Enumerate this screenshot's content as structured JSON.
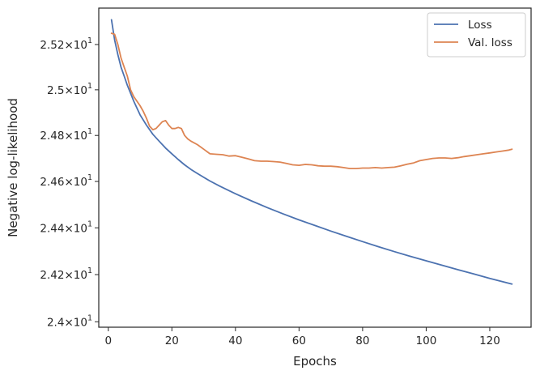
{
  "chart_data": {
    "type": "line",
    "title": "",
    "xlabel": "Epochs",
    "ylabel": "Negative log-likelihood",
    "xlim": [
      -3,
      133
    ],
    "ylim": [
      23.977,
      25.362
    ],
    "yscale": "log",
    "grid": false,
    "legend_position": "top-right",
    "x_ticks": [
      {
        "value": 0,
        "label": "0"
      },
      {
        "value": 20,
        "label": "20"
      },
      {
        "value": 40,
        "label": "40"
      },
      {
        "value": 60,
        "label": "60"
      },
      {
        "value": 80,
        "label": "80"
      },
      {
        "value": 100,
        "label": "100"
      },
      {
        "value": 120,
        "label": "120"
      }
    ],
    "y_ticks": [
      {
        "value": 24.0,
        "mantissa": "2.4",
        "base": "10",
        "exp": "1"
      },
      {
        "value": 24.2,
        "mantissa": "2.42",
        "base": "10",
        "exp": "1"
      },
      {
        "value": 24.4,
        "mantissa": "2.44",
        "base": "10",
        "exp": "1"
      },
      {
        "value": 24.6,
        "mantissa": "2.46",
        "base": "10",
        "exp": "1"
      },
      {
        "value": 24.8,
        "mantissa": "2.48",
        "base": "10",
        "exp": "1"
      },
      {
        "value": 25.0,
        "mantissa": "2.5",
        "base": "10",
        "exp": "1"
      },
      {
        "value": 25.2,
        "mantissa": "2.52",
        "base": "10",
        "exp": "1"
      }
    ],
    "series": [
      {
        "name": "Loss",
        "color": "#4c72b0",
        "x": [
          1,
          2,
          3,
          4,
          5,
          6,
          7,
          8,
          10,
          12,
          14,
          16,
          18,
          20,
          22,
          24,
          26,
          28,
          30,
          32,
          35,
          38,
          40,
          45,
          50,
          55,
          60,
          65,
          70,
          75,
          80,
          85,
          90,
          95,
          100,
          105,
          110,
          115,
          120,
          127
        ],
        "y": [
          25.31,
          25.22,
          25.155,
          25.1,
          25.06,
          25.02,
          24.985,
          24.95,
          24.89,
          24.845,
          24.805,
          24.775,
          24.745,
          24.72,
          24.695,
          24.672,
          24.652,
          24.635,
          24.618,
          24.602,
          24.58,
          24.56,
          24.547,
          24.516,
          24.487,
          24.46,
          24.434,
          24.41,
          24.386,
          24.363,
          24.341,
          24.319,
          24.298,
          24.278,
          24.259,
          24.24,
          24.221,
          24.203,
          24.184,
          24.16
        ]
      },
      {
        "name": "Val. loss",
        "color": "#dd8452",
        "x": [
          1,
          2,
          3,
          4,
          5,
          6,
          7,
          8,
          9,
          10,
          11,
          12,
          13,
          14,
          15,
          16,
          17,
          18,
          19,
          20,
          21,
          22,
          23,
          24,
          25,
          26,
          28,
          30,
          32,
          34,
          36,
          38,
          40,
          42,
          44,
          46,
          48,
          50,
          52,
          54,
          56,
          58,
          60,
          62,
          64,
          66,
          68,
          70,
          72,
          74,
          76,
          78,
          80,
          82,
          84,
          86,
          88,
          90,
          92,
          94,
          96,
          98,
          100,
          102,
          104,
          106,
          108,
          110,
          112,
          114,
          116,
          118,
          120,
          122,
          124,
          126,
          127
        ],
        "y": [
          25.25,
          25.245,
          25.2,
          25.14,
          25.1,
          25.06,
          25.0,
          24.97,
          24.95,
          24.93,
          24.905,
          24.875,
          24.84,
          24.825,
          24.83,
          24.845,
          24.86,
          24.865,
          24.845,
          24.83,
          24.83,
          24.835,
          24.83,
          24.8,
          24.785,
          24.775,
          24.76,
          24.74,
          24.72,
          24.718,
          24.716,
          24.71,
          24.712,
          24.705,
          24.698,
          24.69,
          24.688,
          24.688,
          24.686,
          24.684,
          24.678,
          24.672,
          24.67,
          24.674,
          24.672,
          24.668,
          24.666,
          24.666,
          24.664,
          24.66,
          24.656,
          24.656,
          24.658,
          24.658,
          24.66,
          24.658,
          24.66,
          24.662,
          24.668,
          24.675,
          24.68,
          24.69,
          24.695,
          24.7,
          24.702,
          24.702,
          24.7,
          24.703,
          24.708,
          24.712,
          24.716,
          24.72,
          24.724,
          24.728,
          24.732,
          24.736,
          24.74
        ]
      }
    ]
  }
}
